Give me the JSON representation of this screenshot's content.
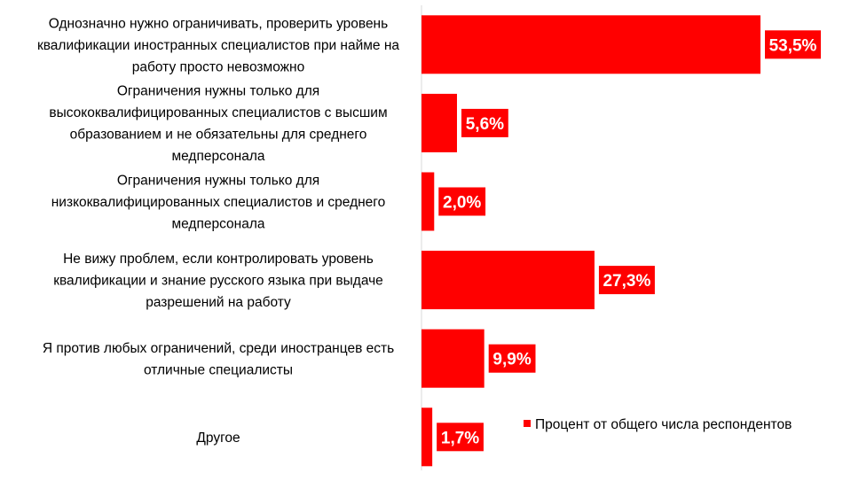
{
  "chart_data": {
    "type": "bar",
    "orientation": "horizontal",
    "categories": [
      [
        "Однозначно нужно ограничивать, проверить уровень",
        "квалификации иностранных специалистов при найме на",
        "работу просто невозможно"
      ],
      [
        "Ограничения нужны только для",
        "высококвалифицированных специалистов с высшим",
        "образованием и не обязательны для среднего",
        "медперсонала"
      ],
      [
        "Ограничения нужны только для",
        "низкоквалифицированных специалистов и среднего",
        "медперсонала"
      ],
      [
        "Не вижу проблем, если контролировать уровень",
        "квалификации и знание русского языка при выдаче",
        "разрешений на работу"
      ],
      [
        "Я против любых ограничений, среди иностранцев есть",
        "отличные специалисты"
      ],
      [
        "Другое"
      ]
    ],
    "series": [
      {
        "name": "Процент от общего числа респондентов",
        "values": [
          53.5,
          5.6,
          2.0,
          27.3,
          9.9,
          1.7
        ],
        "data_labels": [
          "53,5%",
          "5,6%",
          "2,0%",
          "27,3%",
          "9,9%",
          "1,7%"
        ],
        "color": "#ff0000"
      }
    ],
    "legend_position": "right",
    "grid": false,
    "xlim": [
      0,
      60
    ]
  }
}
